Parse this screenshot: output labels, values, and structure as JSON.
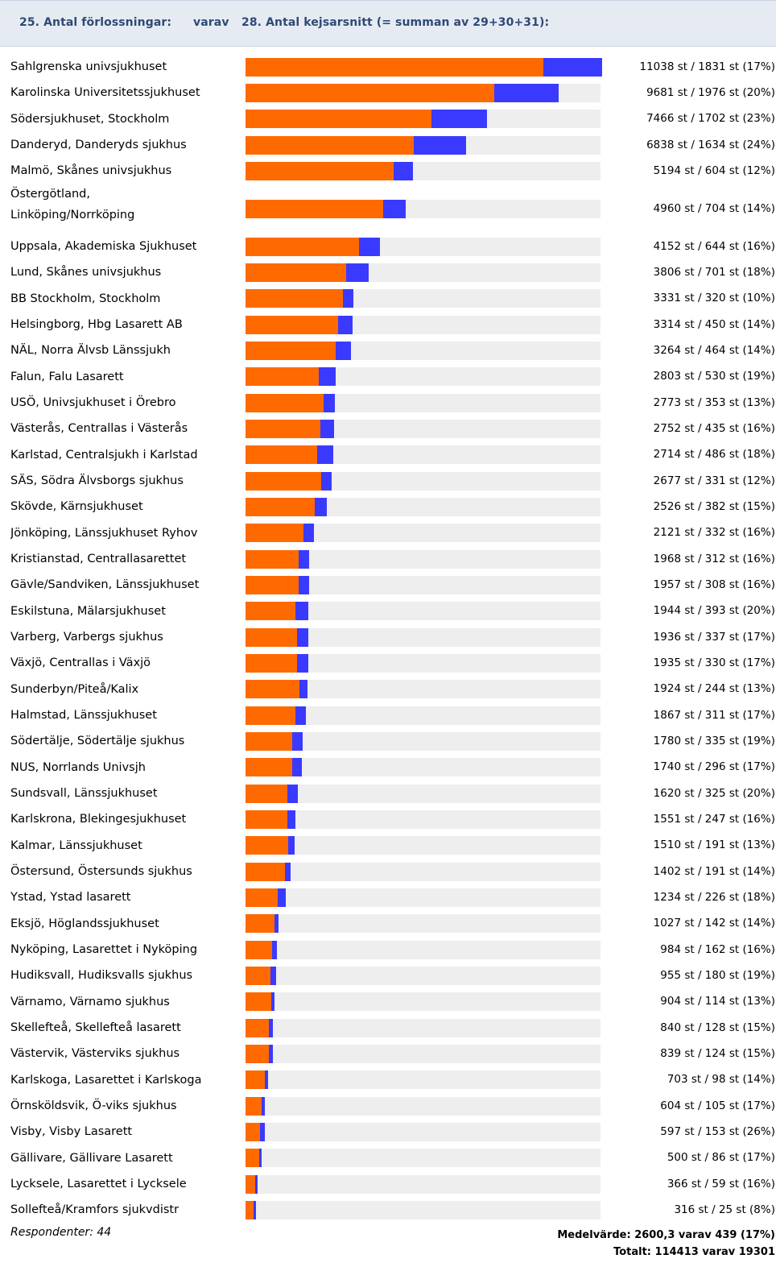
{
  "header": {
    "left": "25. Antal förlossningar:",
    "middle": "varav",
    "right": "28. Antal kejsarsnitt (= summan av 29+30+31):"
  },
  "colors": {
    "total": "#ff6a00",
    "subset": "#3a3aff",
    "track": "#eeeeee"
  },
  "chart_data": {
    "type": "bar",
    "orientation": "horizontal",
    "stacked": true,
    "legend": "none",
    "grid": false,
    "xlim": [
      0,
      11038
    ],
    "series": [
      {
        "name": "Antal förlossningar",
        "color": "#ff6a00"
      },
      {
        "name": "Antal kejsarsnitt",
        "color": "#3a3aff"
      }
    ],
    "rows": [
      {
        "label": "Sahlgrenska univsjukhuset",
        "total": 11038,
        "cs": 1831,
        "text": "11038 st / 1831 st (17%)"
      },
      {
        "label": "Karolinska Universitetssjukhuset",
        "total": 9681,
        "cs": 1976,
        "text": "9681 st / 1976 st (20%)"
      },
      {
        "label": "Södersjukhuset, Stockholm",
        "total": 7466,
        "cs": 1702,
        "text": "7466 st / 1702 st (23%)"
      },
      {
        "label": "Danderyd, Danderyds sjukhus",
        "total": 6838,
        "cs": 1634,
        "text": "6838 st / 1634 st (24%)"
      },
      {
        "label": "Malmö, Skånes univsjukhus",
        "total": 5194,
        "cs": 604,
        "text": "5194 st / 604 st (12%)"
      },
      {
        "label": "Östergötland, Linköping/Norrköping",
        "total": 4960,
        "cs": 704,
        "text": "4960 st / 704 st (14%)",
        "wrap": true
      },
      {
        "label": "Uppsala, Akademiska Sjukhuset",
        "total": 4152,
        "cs": 644,
        "text": "4152 st / 644 st (16%)"
      },
      {
        "label": "Lund, Skånes univsjukhus",
        "total": 3806,
        "cs": 701,
        "text": "3806 st / 701 st (18%)"
      },
      {
        "label": "BB Stockholm, Stockholm",
        "total": 3331,
        "cs": 320,
        "text": "3331 st / 320 st (10%)"
      },
      {
        "label": "Helsingborg, Hbg Lasarett AB",
        "total": 3314,
        "cs": 450,
        "text": "3314 st / 450 st (14%)"
      },
      {
        "label": "NÄL, Norra Älvsb Länssjukh",
        "total": 3264,
        "cs": 464,
        "text": "3264 st / 464 st (14%)"
      },
      {
        "label": "Falun, Falu Lasarett",
        "total": 2803,
        "cs": 530,
        "text": "2803 st / 530 st (19%)"
      },
      {
        "label": "USÖ, Univsjukhuset i Örebro",
        "total": 2773,
        "cs": 353,
        "text": "2773 st / 353 st (13%)"
      },
      {
        "label": "Västerås, Centrallas i Västerås",
        "total": 2752,
        "cs": 435,
        "text": "2752 st / 435 st (16%)"
      },
      {
        "label": "Karlstad, Centralsjukh i Karlstad",
        "total": 2714,
        "cs": 486,
        "text": "2714 st / 486 st (18%)"
      },
      {
        "label": "SÄS, Södra Älvsborgs sjukhus",
        "total": 2677,
        "cs": 331,
        "text": "2677 st / 331 st (12%)"
      },
      {
        "label": "Skövde, Kärnsjukhuset",
        "total": 2526,
        "cs": 382,
        "text": "2526 st / 382 st (15%)"
      },
      {
        "label": "Jönköping, Länssjukhuset Ryhov",
        "total": 2121,
        "cs": 332,
        "text": "2121 st / 332 st (16%)"
      },
      {
        "label": "Kristianstad, Centrallasarettet",
        "total": 1968,
        "cs": 312,
        "text": "1968 st / 312 st (16%)"
      },
      {
        "label": "Gävle/Sandviken, Länssjukhuset",
        "total": 1957,
        "cs": 308,
        "text": "1957 st / 308 st (16%)"
      },
      {
        "label": "Eskilstuna, Mälarsjukhuset",
        "total": 1944,
        "cs": 393,
        "text": "1944 st / 393 st (20%)"
      },
      {
        "label": "Varberg, Varbergs sjukhus",
        "total": 1936,
        "cs": 337,
        "text": "1936 st / 337 st (17%)"
      },
      {
        "label": "Växjö, Centrallas i Växjö",
        "total": 1935,
        "cs": 330,
        "text": "1935 st / 330 st (17%)"
      },
      {
        "label": "Sunderbyn/Piteå/Kalix",
        "total": 1924,
        "cs": 244,
        "text": "1924 st / 244 st (13%)"
      },
      {
        "label": "Halmstad, Länssjukhuset",
        "total": 1867,
        "cs": 311,
        "text": "1867 st / 311 st (17%)"
      },
      {
        "label": "Södertälje, Södertälje sjukhus",
        "total": 1780,
        "cs": 335,
        "text": "1780 st / 335 st (19%)"
      },
      {
        "label": "NUS, Norrlands Univsjh",
        "total": 1740,
        "cs": 296,
        "text": "1740 st / 296 st (17%)"
      },
      {
        "label": "Sundsvall, Länssjukhuset",
        "total": 1620,
        "cs": 325,
        "text": "1620 st / 325 st (20%)"
      },
      {
        "label": "Karlskrona, Blekingesjukhuset",
        "total": 1551,
        "cs": 247,
        "text": "1551 st / 247 st (16%)"
      },
      {
        "label": "Kalmar, Länssjukhuset",
        "total": 1510,
        "cs": 191,
        "text": "1510 st / 191 st (13%)"
      },
      {
        "label": "Östersund, Östersunds sjukhus",
        "total": 1402,
        "cs": 191,
        "text": "1402 st / 191 st (14%)"
      },
      {
        "label": "Ystad, Ystad lasarett",
        "total": 1234,
        "cs": 226,
        "text": "1234 st / 226 st (18%)"
      },
      {
        "label": "Eksjö, Höglandssjukhuset",
        "total": 1027,
        "cs": 142,
        "text": "1027 st / 142 st (14%)"
      },
      {
        "label": "Nyköping, Lasarettet i Nyköping",
        "total": 984,
        "cs": 162,
        "text": "984 st / 162 st (16%)"
      },
      {
        "label": "Hudiksvall, Hudiksvalls sjukhus",
        "total": 955,
        "cs": 180,
        "text": "955 st / 180 st (19%)"
      },
      {
        "label": "Värnamo, Värnamo sjukhus",
        "total": 904,
        "cs": 114,
        "text": "904 st / 114 st (13%)"
      },
      {
        "label": "Skellefteå, Skellefteå lasarett",
        "total": 840,
        "cs": 128,
        "text": "840 st / 128 st (15%)"
      },
      {
        "label": "Västervik, Västerviks sjukhus",
        "total": 839,
        "cs": 124,
        "text": "839 st / 124 st (15%)"
      },
      {
        "label": "Karlskoga, Lasarettet i Karlskoga",
        "total": 703,
        "cs": 98,
        "text": "703 st / 98 st (14%)"
      },
      {
        "label": "Örnsköldsvik, Ö-viks sjukhus",
        "total": 604,
        "cs": 105,
        "text": "604 st / 105 st (17%)"
      },
      {
        "label": "Visby, Visby Lasarett",
        "total": 597,
        "cs": 153,
        "text": "597 st / 153 st (26%)"
      },
      {
        "label": "Gällivare, Gällivare Lasarett",
        "total": 500,
        "cs": 86,
        "text": "500 st / 86 st (17%)"
      },
      {
        "label": "Lycksele, Lasarettet i Lycksele",
        "total": 366,
        "cs": 59,
        "text": "366 st / 59 st (16%)"
      },
      {
        "label": "Sollefteå/Kramfors sjukvdistr",
        "total": 316,
        "cs": 25,
        "text": "316 st / 25 st (8%)"
      }
    ]
  },
  "footer": {
    "respondents": "Respondenter: 44",
    "mean": "Medelvärde: 2600,3 varav 439 (17%)",
    "total": "Totalt: 114413 varav 19301"
  }
}
